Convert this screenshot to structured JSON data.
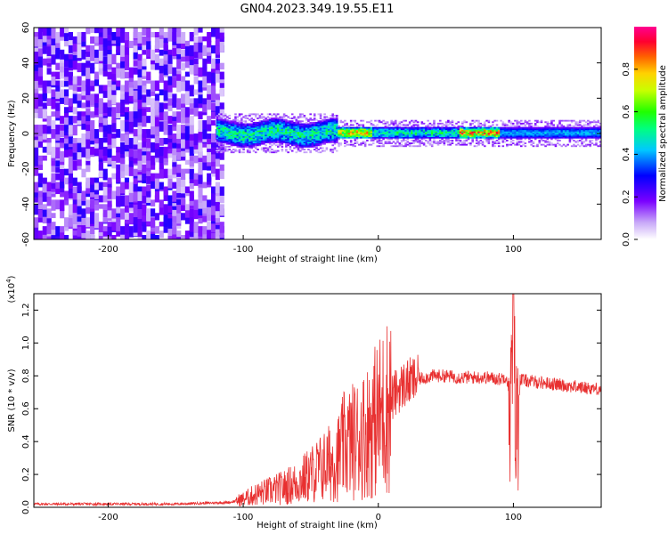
{
  "chart_data": [
    {
      "type": "heatmap",
      "title": "GN04.2023.349.19.55.E11",
      "xlabel": "Height of straight line (km)",
      "ylabel": "Frequency (Hz)",
      "xlim": [
        -255,
        165
      ],
      "ylim": [
        -60,
        60
      ],
      "x_ticks": [
        -200,
        -100,
        0,
        100
      ],
      "y_ticks": [
        -60,
        -40,
        -20,
        0,
        20,
        40,
        60
      ],
      "colorbar": {
        "label": "Normalized spectral amplitude",
        "range": [
          0,
          1
        ],
        "ticks": [
          0.0,
          0.2,
          0.4,
          0.6,
          0.8
        ]
      },
      "description_regions": [
        {
          "x_range": [
            -255,
            -115
          ],
          "y_range": [
            -60,
            60
          ],
          "level": "low (0.05-0.25), broadband noise"
        },
        {
          "x_range": [
            -120,
            -30
          ],
          "y_range": [
            -8,
            8
          ],
          "level": "moderate, peaks ~0.6"
        },
        {
          "x_range": [
            -30,
            -5
          ],
          "y_range": [
            -3,
            3
          ],
          "level": "high, peaks ~0.9"
        },
        {
          "x_range": [
            -5,
            90
          ],
          "y_range": [
            -4,
            4
          ],
          "level": "moderate, peak ~0.95 near 70-90 km"
        },
        {
          "x_range": [
            90,
            165
          ],
          "y_range": [
            -4,
            4
          ],
          "level": "moderate ~0.4"
        }
      ]
    },
    {
      "type": "line",
      "xlabel": "Height of straight line (km)",
      "ylabel": "SNR (10 * v/v)",
      "yunit": "(x10^4)",
      "xlim": [
        -255,
        165
      ],
      "ylim": [
        0,
        1.3
      ],
      "x_ticks": [
        -200,
        -100,
        0,
        100
      ],
      "y_ticks": [
        0.0,
        0.2,
        0.4,
        0.6,
        0.8,
        1.0,
        1.2
      ],
      "color": "#e83030",
      "series": [
        {
          "x": [
            -255,
            -200,
            -150,
            -110,
            -100,
            -90,
            -80,
            -70,
            -60,
            -50,
            -40,
            -30,
            -25,
            -20,
            -15,
            -10,
            -5,
            0,
            5,
            10,
            15,
            20,
            25,
            30,
            35,
            40,
            50,
            60,
            70,
            80,
            90,
            95,
            98,
            100,
            102,
            105,
            110,
            120,
            130,
            140,
            150,
            165
          ],
          "y": [
            0.02,
            0.02,
            0.02,
            0.03,
            0.05,
            0.08,
            0.1,
            0.12,
            0.15,
            0.2,
            0.25,
            0.3,
            0.38,
            0.4,
            0.42,
            0.45,
            0.5,
            0.55,
            0.6,
            0.66,
            0.72,
            0.75,
            0.77,
            0.78,
            0.79,
            0.8,
            0.8,
            0.79,
            0.79,
            0.79,
            0.78,
            0.8,
            0.6,
            1.15,
            0.4,
            0.78,
            0.77,
            0.76,
            0.75,
            0.74,
            0.73,
            0.72
          ]
        }
      ]
    }
  ]
}
